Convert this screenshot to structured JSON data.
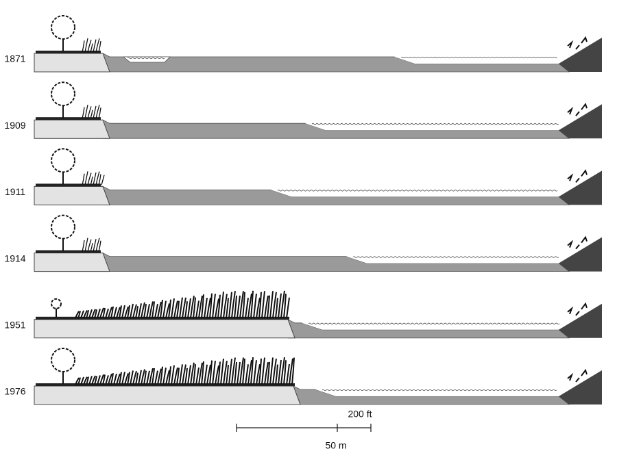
{
  "panels": [
    {
      "year": "1871"
    },
    {
      "year": "1909"
    },
    {
      "year": "1911"
    },
    {
      "year": "1914"
    },
    {
      "year": "1951"
    },
    {
      "year": "1976"
    }
  ],
  "scale": {
    "feet": "200 ft",
    "meters": "50 m"
  }
}
